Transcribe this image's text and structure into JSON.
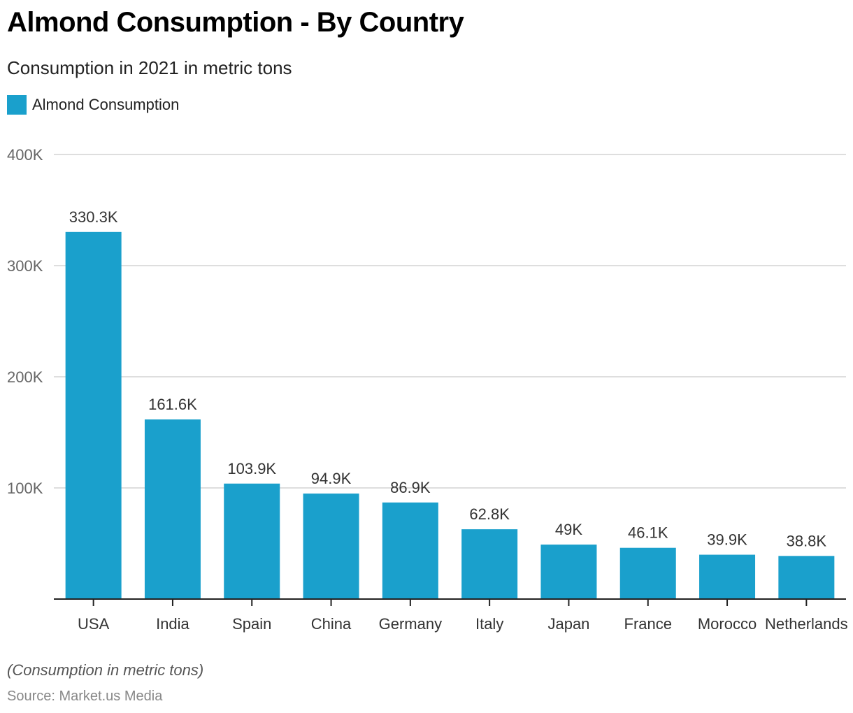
{
  "header": {
    "title": "Almond Consumption - By Country",
    "subtitle": "Consumption in 2021 in metric tons"
  },
  "legend": {
    "label": "Almond Consumption",
    "color": "#1aa0cc"
  },
  "footer": {
    "note": "(Consumption in metric tons)",
    "source": "Source: Market.us Media"
  },
  "chart_data": {
    "type": "bar",
    "title": "Almond Consumption - By Country",
    "subtitle": "Consumption in 2021 in metric tons",
    "xlabel": "",
    "ylabel": "",
    "ylim": [
      0,
      400000
    ],
    "yticks": [
      100000,
      200000,
      300000,
      400000
    ],
    "ytick_labels": [
      "100K",
      "200K",
      "300K",
      "400K"
    ],
    "grid": true,
    "legend_position": "top-left",
    "categories": [
      "USA",
      "India",
      "Spain",
      "China",
      "Germany",
      "Italy",
      "Japan",
      "France",
      "Morocco",
      "Netherlands"
    ],
    "category_labels_displayed": [
      "USA",
      "India",
      "Spain",
      "China",
      "Germany",
      "Italy",
      "Japan",
      "France",
      "Morocco",
      "Netherlands"
    ],
    "series": [
      {
        "name": "Almond Consumption",
        "color": "#1aa0cc",
        "values": [
          330300,
          161600,
          103900,
          94900,
          86900,
          62800,
          49000,
          46100,
          39900,
          38800
        ],
        "labels": [
          "330.3K",
          "161.6K",
          "103.9K",
          "94.9K",
          "86.9K",
          "62.8K",
          "49K",
          "46.1K",
          "39.9K",
          "38.8K"
        ]
      }
    ]
  }
}
